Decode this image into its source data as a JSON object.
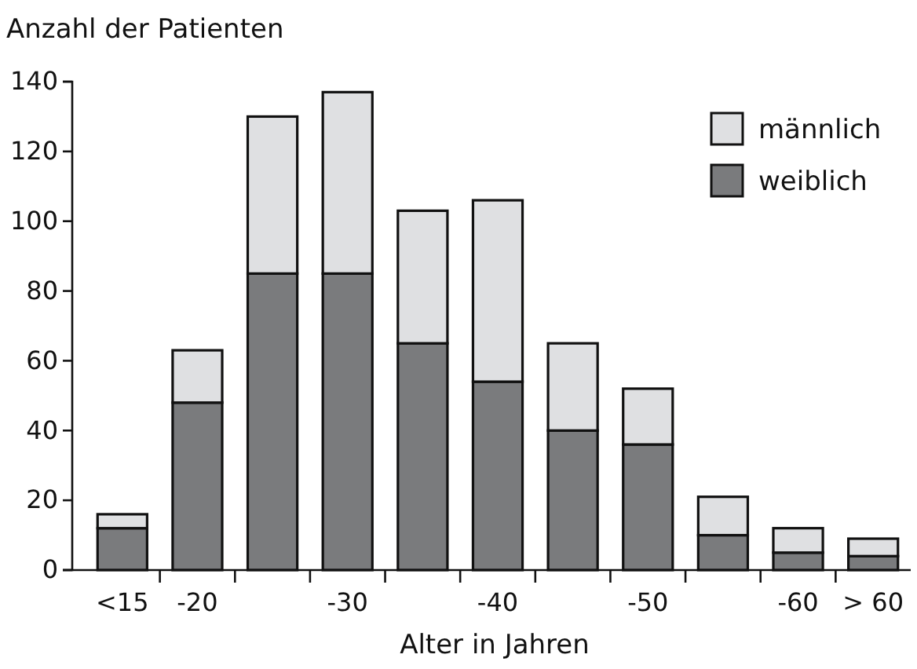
{
  "chart_data": {
    "type": "bar",
    "stacked": true,
    "ylabel": "Anzahl der Patienten",
    "xlabel": "Alter in Jahren",
    "categories": [
      "<15",
      "-20",
      null,
      "-30",
      null,
      "-40",
      null,
      "-50",
      null,
      "-60",
      "> 60"
    ],
    "series": [
      {
        "name": "weiblich",
        "color": "#7a7b7d",
        "values": [
          12,
          48,
          85,
          85,
          65,
          54,
          40,
          36,
          10,
          5,
          4
        ]
      },
      {
        "name": "männlich",
        "color": "#dfe0e2",
        "values": [
          4,
          15,
          45,
          52,
          38,
          52,
          25,
          16,
          11,
          7,
          5
        ]
      }
    ],
    "ylim": [
      0,
      140
    ],
    "yticks": [
      0,
      20,
      40,
      60,
      80,
      100,
      120,
      140
    ],
    "grid": false,
    "legend": "top right"
  }
}
